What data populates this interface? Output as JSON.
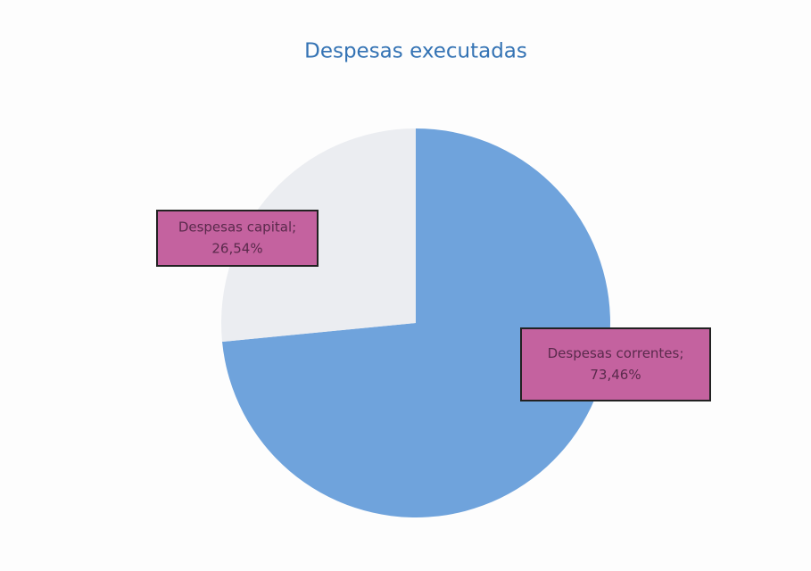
{
  "chart_data": {
    "type": "pie",
    "title": "Despesas executadas",
    "categories": [
      "Despesas correntes;",
      "Despesas capital;"
    ],
    "values": [
      73.46,
      26.54
    ],
    "value_labels": [
      "73,46%",
      "26,54%"
    ],
    "colors": [
      "#6fa3dc",
      "#ebedf1"
    ],
    "label_color": "#c4629f"
  }
}
